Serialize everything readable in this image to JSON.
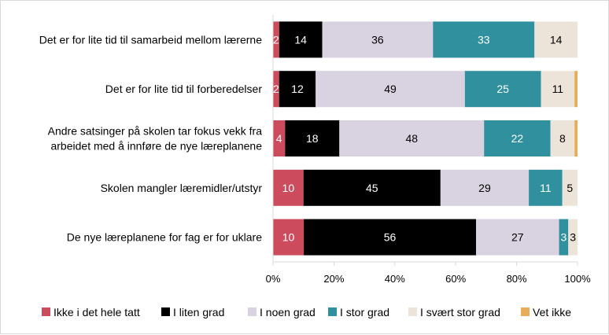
{
  "chart_data": {
    "type": "bar",
    "orientation": "horizontal",
    "stacked": "percent",
    "title": "",
    "xlabel": "",
    "ylabel": "",
    "xlim": [
      0,
      100
    ],
    "ticks": [
      "0%",
      "20%",
      "40%",
      "60%",
      "80%",
      "100%"
    ],
    "tick_values": [
      0,
      20,
      40,
      60,
      80,
      100
    ],
    "grid": false,
    "legend_position": "bottom",
    "categories": [
      [
        "Det er for lite tid til samarbeid mellom lærerne"
      ],
      [
        "Det er for lite tid til forberedelser"
      ],
      [
        "Andre satsinger på skolen tar fokus vekk fra",
        "arbeidet med å innføre de nye læreplanene"
      ],
      [
        "Skolen mangler læremidler/utstyr"
      ],
      [
        "De nye læreplanene for fag er for uklare"
      ]
    ],
    "series": [
      {
        "name": "Ikke i det hele tatt",
        "color": "#cc4b5c",
        "label_color": "#ffffff",
        "values": [
          2,
          2,
          4,
          10,
          10
        ]
      },
      {
        "name": "I liten grad",
        "color": "#000000",
        "label_color": "#ffffff",
        "values": [
          14,
          12,
          18,
          45,
          56
        ]
      },
      {
        "name": "I noen grad",
        "color": "#d9d2e0",
        "label_color": "#000000",
        "values": [
          36,
          49,
          48,
          29,
          27
        ]
      },
      {
        "name": "I stor grad",
        "color": "#31909e",
        "label_color": "#ffffff",
        "values": [
          33,
          25,
          22,
          11,
          3
        ]
      },
      {
        "name": "I svært stor grad",
        "color": "#ede4d9",
        "label_color": "#000000",
        "values": [
          14,
          11,
          8,
          5,
          3
        ]
      },
      {
        "name": "Vet ikke",
        "color": "#e8ad5a",
        "label_color": "#000000",
        "values": [
          0,
          1,
          1,
          0,
          0
        ]
      }
    ],
    "data_labels": [
      [
        "2",
        "14",
        "36",
        "33",
        "14",
        ""
      ],
      [
        "2",
        "12",
        "49",
        "25",
        "11",
        ""
      ],
      [
        "4",
        "18",
        "48",
        "22",
        "8",
        ""
      ],
      [
        "10",
        "45",
        "29",
        "11",
        "5",
        ""
      ],
      [
        "10",
        "56",
        "27",
        "3",
        "3",
        ""
      ]
    ]
  }
}
